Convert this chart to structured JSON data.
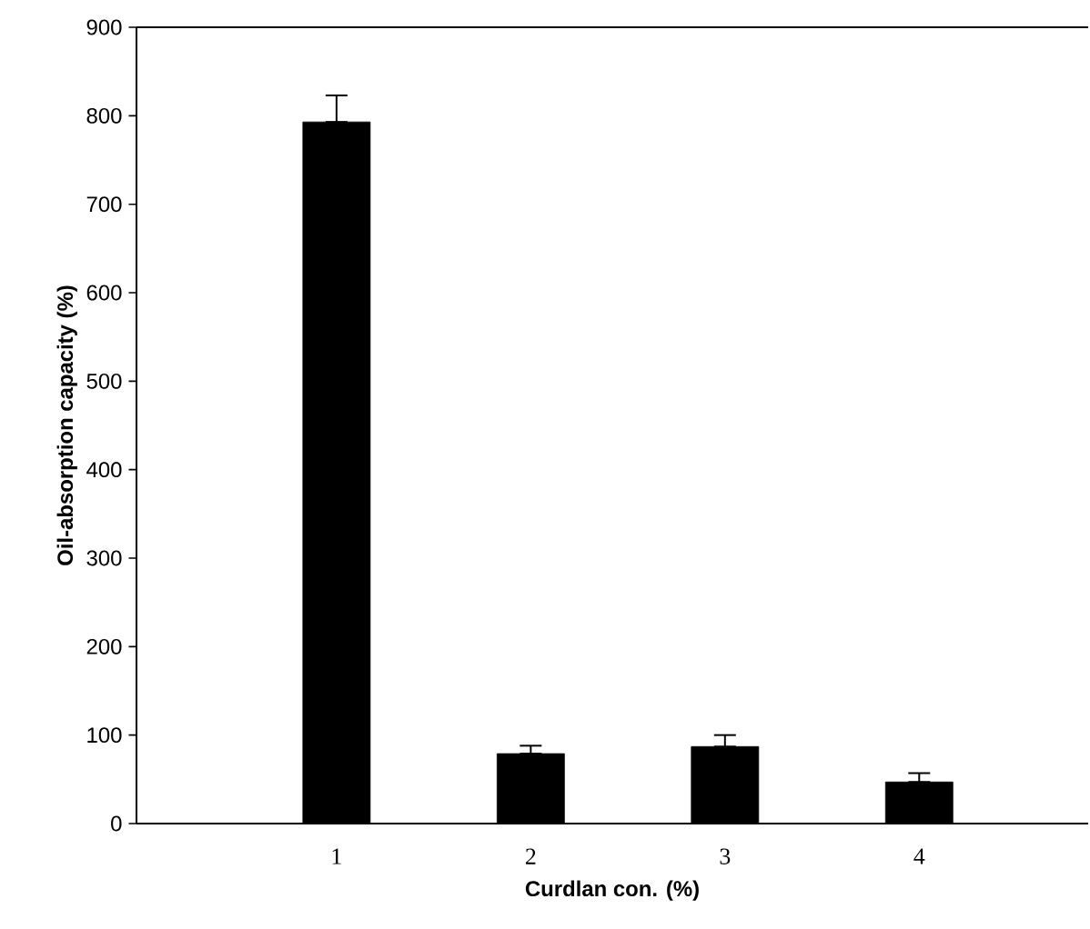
{
  "chart_data": {
    "type": "bar",
    "xlabel": "Curdlan con. (%)",
    "ylabel": "Oil-absorption capacity (%)",
    "categories": [
      "1",
      "2",
      "3",
      "4"
    ],
    "values": [
      793,
      79,
      87,
      47
    ],
    "errors": [
      [
        793,
        823
      ],
      [
        79,
        88
      ],
      [
        87,
        100
      ],
      [
        47,
        57
      ]
    ],
    "color": "#000000",
    "ylim": [
      0,
      900
    ],
    "yticks": [
      0,
      100,
      200,
      300,
      400,
      500,
      600,
      700,
      800,
      900
    ]
  }
}
